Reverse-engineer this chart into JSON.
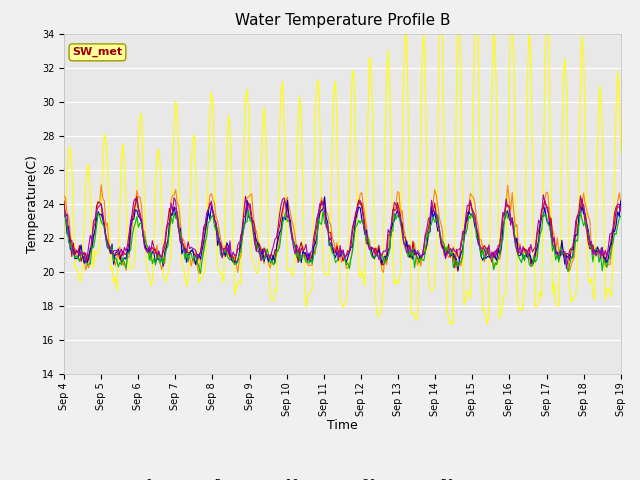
{
  "title": "Water Temperature Profile B",
  "xlabel": "Time",
  "ylabel": "Temperature(C)",
  "ylim": [
    14,
    34
  ],
  "yticks": [
    14,
    16,
    18,
    20,
    22,
    24,
    26,
    28,
    30,
    32,
    34
  ],
  "x_labels": [
    "Sep 4",
    "Sep 5",
    "Sep 6",
    "Sep 7",
    "Sep 8",
    "Sep 9",
    "Sep 10",
    "Sep 11",
    "Sep 12",
    "Sep 13",
    "Sep 14",
    "Sep 15",
    "Sep 16",
    "Sep 17",
    "Sep 18",
    "Sep 19"
  ],
  "series_colors": {
    "0cm": "#cc0000",
    "+5cm": "#0000cc",
    "+10cm": "#00bb00",
    "+30cm": "#ff8800",
    "+50cm": "#ffff00",
    "TC_temp11": "#aa00aa"
  },
  "annotation_text": "SW_met",
  "annotation_color": "#990000",
  "annotation_box_facecolor": "#ffff99",
  "annotation_box_edgecolor": "#999900",
  "fig_facecolor": "#f0f0f0",
  "plot_facecolor": "#e8e8e8",
  "grid_color": "#ffffff",
  "title_fontsize": 11,
  "axis_label_fontsize": 9,
  "tick_fontsize": 7,
  "linewidth": 0.8
}
